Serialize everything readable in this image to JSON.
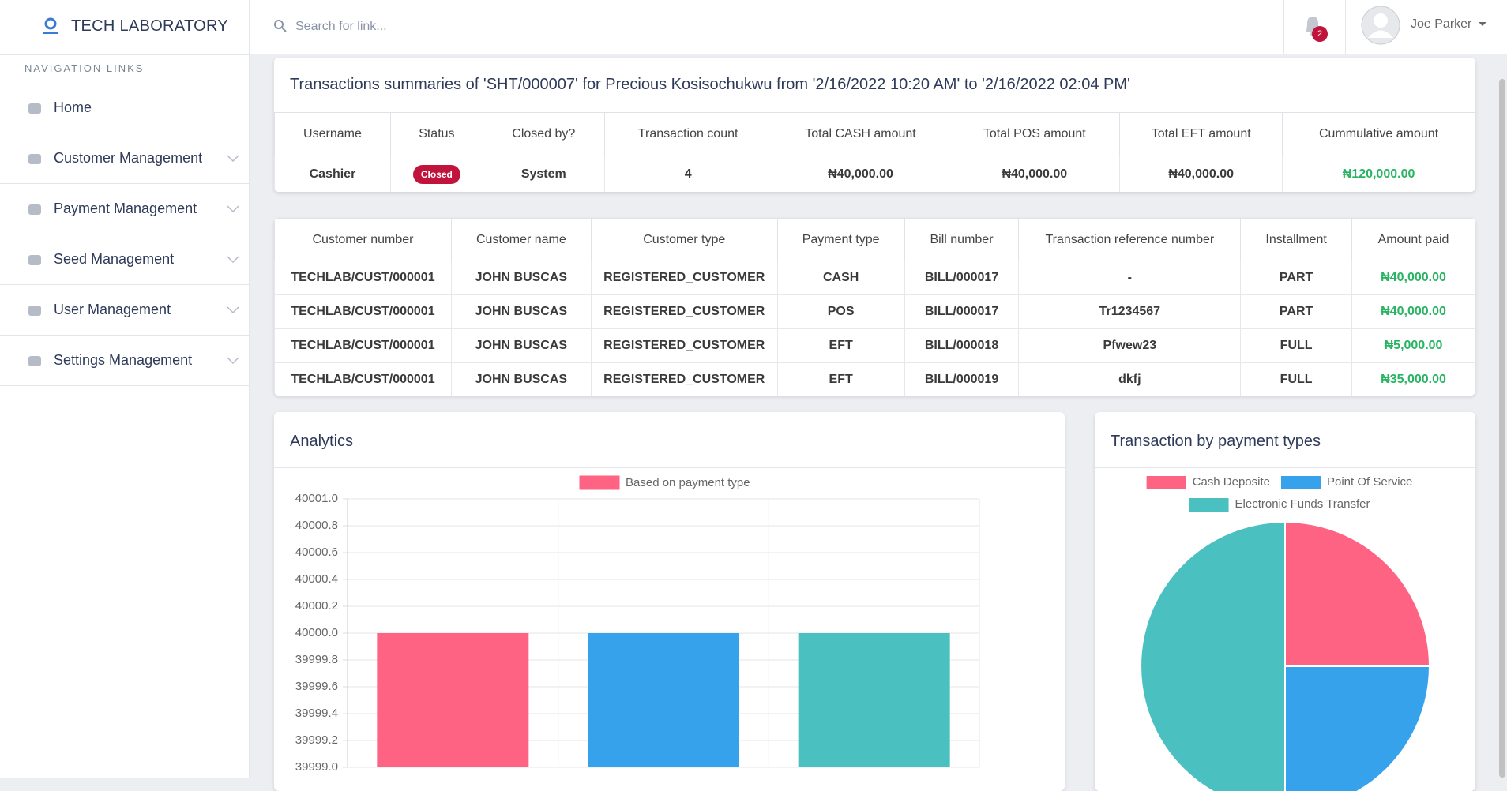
{
  "brand": "TECH LABORATORY",
  "search_placeholder": "Search for link...",
  "notification_count": 2,
  "user_name": "Joe Parker",
  "nav_heading": "NAVIGATION LINKS",
  "nav_items": [
    "Home",
    "Customer Management",
    "Payment Management",
    "Seed Management",
    "User Management",
    "Settings Management"
  ],
  "summary": {
    "title": "Transactions summaries of 'SHT/000007' for Precious Kosisochukwu from '2/16/2022 10:20 AM' to '2/16/2022 02:04 PM'",
    "columns": [
      "Username",
      "Status",
      "Closed by?",
      "Transaction count",
      "Total CASH amount",
      "Total POS amount",
      "Total EFT amount",
      "Cummulative amount"
    ],
    "rows": [
      [
        "Cashier",
        "Closed",
        "System",
        4,
        "₦40,000.00",
        "₦40,000.00",
        "₦40,000.00",
        "₦120,000.00"
      ]
    ]
  },
  "transactions": {
    "columns": [
      "Customer number",
      "Customer name",
      "Customer type",
      "Payment type",
      "Bill number",
      "Transaction reference number",
      "Installment",
      "Amount paid"
    ],
    "rows": [
      [
        "TECHLAB/CUST/000001",
        "JOHN BUSCAS",
        "REGISTERED_CUSTOMER",
        "CASH",
        "BILL/000017",
        "-",
        "PART",
        "₦40,000.00"
      ],
      [
        "TECHLAB/CUST/000001",
        "JOHN BUSCAS",
        "REGISTERED_CUSTOMER",
        "POS",
        "BILL/000017",
        "Tr1234567",
        "PART",
        "₦40,000.00"
      ],
      [
        "TECHLAB/CUST/000001",
        "JOHN BUSCAS",
        "REGISTERED_CUSTOMER",
        "EFT",
        "BILL/000018",
        "Pfwew23",
        "FULL",
        "₦5,000.00"
      ],
      [
        "TECHLAB/CUST/000001",
        "JOHN BUSCAS",
        "REGISTERED_CUSTOMER",
        "EFT",
        "BILL/000019",
        "dkfj",
        "FULL",
        "₦35,000.00"
      ]
    ]
  },
  "analytics_title": "Analytics",
  "payment_types_title": "Transaction by payment types",
  "chart_data": [
    {
      "type": "bar",
      "categories": [
        null,
        null,
        null
      ],
      "series": [
        {
          "name": "Based on payment type",
          "color": "#ff6384",
          "values": [
            40000,
            40000,
            40000
          ]
        }
      ],
      "colors": [
        "#ff6384",
        "#36a2eb",
        "#4bc0c0"
      ],
      "ylim": [
        39999.0,
        40001.0
      ],
      "yticks": [
        {
          "value": 39999.0,
          "label": "39999.0"
        },
        {
          "value": 39999.2,
          "label": "39999.2"
        },
        {
          "value": 39999.4,
          "label": "39999.4"
        },
        {
          "value": 39999.6,
          "label": "39999.6"
        },
        {
          "value": 39999.8,
          "label": "39999.8"
        },
        {
          "value": 40000.0,
          "label": "40000.0"
        },
        {
          "value": 40000.2,
          "label": "40000.2"
        },
        {
          "value": 40000.4,
          "label": "40000.4"
        },
        {
          "value": 40000.6,
          "label": "40000.6"
        },
        {
          "value": 40000.8,
          "label": "40000.8"
        },
        {
          "value": 40001.0,
          "label": "40001.0"
        }
      ],
      "grid": true
    },
    {
      "type": "pie",
      "categories": [
        "Cash Deposite",
        "Point Of Service",
        "Electronic Funds Transfer"
      ],
      "values": [
        25,
        25,
        50
      ],
      "colors": [
        "#ff6384",
        "#36a2eb",
        "#4bc0c0"
      ]
    }
  ]
}
